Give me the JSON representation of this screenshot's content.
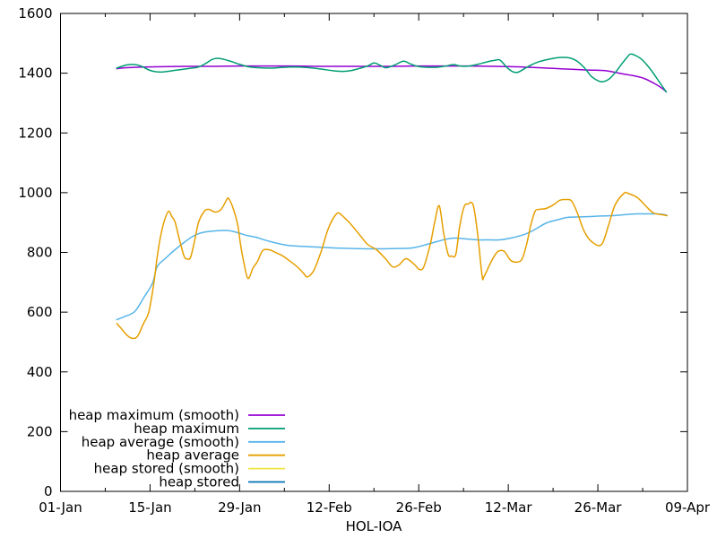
{
  "chart_data": {
    "type": "line",
    "title": "",
    "xlabel": "HOL-IOA",
    "ylabel": "",
    "xlim_days": [
      0,
      98
    ],
    "ylim": [
      0,
      1600
    ],
    "grid": false,
    "legend_position": "inside-bottom-left",
    "axis_color": "#000000",
    "background_color": "#ffffff",
    "y_ticks": [
      0,
      200,
      400,
      600,
      800,
      1000,
      1200,
      1400,
      1600
    ],
    "x_major_ticks": [
      {
        "day": 0,
        "label": "01-Jan"
      },
      {
        "day": 14,
        "label": "15-Jan"
      },
      {
        "day": 28,
        "label": "29-Jan"
      },
      {
        "day": 42,
        "label": "12-Feb"
      },
      {
        "day": 56,
        "label": "26-Feb"
      },
      {
        "day": 70,
        "label": "12-Mar"
      },
      {
        "day": 84,
        "label": "26-Mar"
      },
      {
        "day": 98,
        "label": "09-Apr"
      }
    ],
    "x_minor_tick_days": [
      7,
      21,
      35,
      49,
      63,
      77,
      91
    ],
    "series": [
      {
        "name": "heap maximum (smooth)",
        "color": "#9400d3",
        "points": [
          [
            8.8,
            1415
          ],
          [
            10,
            1418
          ],
          [
            12,
            1420
          ],
          [
            14,
            1421
          ],
          [
            17,
            1422
          ],
          [
            20,
            1423
          ],
          [
            24,
            1423
          ],
          [
            28,
            1424
          ],
          [
            32,
            1424
          ],
          [
            36,
            1424
          ],
          [
            40,
            1423
          ],
          [
            44,
            1423
          ],
          [
            48,
            1423
          ],
          [
            52,
            1423
          ],
          [
            56,
            1424
          ],
          [
            60,
            1424
          ],
          [
            64,
            1424
          ],
          [
            68,
            1423
          ],
          [
            70,
            1422
          ],
          [
            72,
            1421
          ],
          [
            74,
            1419
          ],
          [
            76,
            1417
          ],
          [
            78,
            1415
          ],
          [
            80,
            1413
          ],
          [
            82,
            1411
          ],
          [
            83.5,
            1410
          ],
          [
            85.4,
            1408
          ],
          [
            87.6,
            1399
          ],
          [
            90,
            1390
          ],
          [
            91.4,
            1381
          ],
          [
            92.8,
            1366
          ],
          [
            93.8,
            1353
          ],
          [
            94.7,
            1338
          ]
        ]
      },
      {
        "name": "heap maximum",
        "color": "#009e73",
        "points": [
          [
            8.8,
            1417
          ],
          [
            10.2,
            1427
          ],
          [
            11.6,
            1429
          ],
          [
            12.7,
            1423
          ],
          [
            13.8,
            1411
          ],
          [
            14.9,
            1405
          ],
          [
            16.0,
            1404
          ],
          [
            17.4,
            1408
          ],
          [
            18.8,
            1412
          ],
          [
            20.2,
            1416
          ],
          [
            21.6,
            1421
          ],
          [
            22.8,
            1434
          ],
          [
            23.7,
            1446
          ],
          [
            24.6,
            1450
          ],
          [
            25.6,
            1446
          ],
          [
            26.7,
            1439
          ],
          [
            28.1,
            1429
          ],
          [
            29.5,
            1421
          ],
          [
            31.2,
            1418
          ],
          [
            32.9,
            1417
          ],
          [
            34.5,
            1419
          ],
          [
            36.2,
            1421
          ],
          [
            37.9,
            1420
          ],
          [
            39.6,
            1417
          ],
          [
            41.0,
            1413
          ],
          [
            42.7,
            1408
          ],
          [
            44.1,
            1406
          ],
          [
            45.5,
            1409
          ],
          [
            46.9,
            1417
          ],
          [
            48.0,
            1424
          ],
          [
            49.0,
            1434
          ],
          [
            49.9,
            1427
          ],
          [
            50.9,
            1418
          ],
          [
            52.2,
            1427
          ],
          [
            53.6,
            1440
          ],
          [
            54.7,
            1431
          ],
          [
            55.8,
            1423
          ],
          [
            57.2,
            1420
          ],
          [
            58.9,
            1420
          ],
          [
            60.3,
            1424
          ],
          [
            61.4,
            1429
          ],
          [
            62.5,
            1424
          ],
          [
            63.9,
            1424
          ],
          [
            65.3,
            1430
          ],
          [
            66.7,
            1438
          ],
          [
            67.9,
            1443
          ],
          [
            68.7,
            1444
          ],
          [
            69.8,
            1419
          ],
          [
            70.7,
            1405
          ],
          [
            71.5,
            1403
          ],
          [
            72.6,
            1416
          ],
          [
            73.7,
            1429
          ],
          [
            74.9,
            1439
          ],
          [
            76.0,
            1445
          ],
          [
            77.4,
            1451
          ],
          [
            78.5,
            1453
          ],
          [
            79.6,
            1451
          ],
          [
            80.7,
            1441
          ],
          [
            81.9,
            1418
          ],
          [
            83.0,
            1389
          ],
          [
            84.1,
            1374
          ],
          [
            84.9,
            1372
          ],
          [
            85.9,
            1383
          ],
          [
            86.9,
            1407
          ],
          [
            87.7,
            1430
          ],
          [
            88.6,
            1454
          ],
          [
            89.1,
            1464
          ],
          [
            89.8,
            1460
          ],
          [
            90.7,
            1449
          ],
          [
            91.7,
            1427
          ],
          [
            92.6,
            1402
          ],
          [
            93.6,
            1371
          ],
          [
            94.7,
            1337
          ]
        ]
      },
      {
        "name": "heap average (smooth)",
        "color": "#56b4e9",
        "points": [
          [
            8.8,
            575
          ],
          [
            10.0,
            585
          ],
          [
            11.6,
            602
          ],
          [
            13.0,
            648
          ],
          [
            14.4,
            698
          ],
          [
            15.1,
            752
          ],
          [
            16.5,
            782
          ],
          [
            17.9,
            809
          ],
          [
            19.3,
            833
          ],
          [
            20.7,
            854
          ],
          [
            22.1,
            866
          ],
          [
            24.2,
            872
          ],
          [
            26.3,
            873
          ],
          [
            27.7,
            866
          ],
          [
            29.1,
            857
          ],
          [
            30.5,
            851
          ],
          [
            32.5,
            838
          ],
          [
            35.4,
            824
          ],
          [
            38.0,
            820
          ],
          [
            40.0,
            818
          ],
          [
            42.8,
            815
          ],
          [
            46.0,
            813
          ],
          [
            49.4,
            812
          ],
          [
            52.0,
            813
          ],
          [
            55.0,
            815
          ],
          [
            57.8,
            830
          ],
          [
            60.0,
            843
          ],
          [
            61.6,
            848
          ],
          [
            63.4,
            845
          ],
          [
            65.2,
            842
          ],
          [
            67.0,
            842
          ],
          [
            68.6,
            842
          ],
          [
            70.4,
            848
          ],
          [
            72.2,
            858
          ],
          [
            73.2,
            866
          ],
          [
            74.4,
            880
          ],
          [
            76.0,
            899
          ],
          [
            77.5,
            908
          ],
          [
            79.2,
            917
          ],
          [
            81.0,
            919
          ],
          [
            82.6,
            920
          ],
          [
            84.4,
            922
          ],
          [
            86.2,
            923
          ],
          [
            88.0,
            926
          ],
          [
            90.0,
            929
          ],
          [
            91.7,
            929
          ],
          [
            93.2,
            929
          ],
          [
            94.3,
            927
          ],
          [
            94.8,
            924
          ]
        ]
      },
      {
        "name": "heap average",
        "color": "#e69f00",
        "points": [
          [
            8.8,
            562
          ],
          [
            9.5,
            545
          ],
          [
            10.3,
            525
          ],
          [
            11.1,
            513
          ],
          [
            12.0,
            518
          ],
          [
            13.0,
            563
          ],
          [
            13.8,
            600
          ],
          [
            14.6,
            698
          ],
          [
            15.1,
            783
          ],
          [
            15.7,
            860
          ],
          [
            16.3,
            910
          ],
          [
            16.9,
            938
          ],
          [
            17.4,
            920
          ],
          [
            17.9,
            902
          ],
          [
            18.6,
            842
          ],
          [
            19.3,
            788
          ],
          [
            19.7,
            779
          ],
          [
            20.3,
            782
          ],
          [
            20.9,
            833
          ],
          [
            21.6,
            902
          ],
          [
            22.5,
            938
          ],
          [
            23.2,
            944
          ],
          [
            24.2,
            935
          ],
          [
            25.1,
            944
          ],
          [
            26.0,
            977
          ],
          [
            26.3,
            980
          ],
          [
            27.0,
            947
          ],
          [
            27.7,
            893
          ],
          [
            28.1,
            833
          ],
          [
            28.6,
            773
          ],
          [
            29.3,
            713
          ],
          [
            30.1,
            748
          ],
          [
            30.8,
            770
          ],
          [
            31.6,
            806
          ],
          [
            32.6,
            809
          ],
          [
            33.6,
            800
          ],
          [
            34.6,
            790
          ],
          [
            35.8,
            772
          ],
          [
            37.0,
            752
          ],
          [
            38.0,
            730
          ],
          [
            38.6,
            718
          ],
          [
            39.6,
            740
          ],
          [
            40.7,
            800
          ],
          [
            41.7,
            870
          ],
          [
            42.4,
            905
          ],
          [
            43.1,
            928
          ],
          [
            43.5,
            932
          ],
          [
            44.2,
            920
          ],
          [
            45.2,
            899
          ],
          [
            46.6,
            863
          ],
          [
            48.0,
            827
          ],
          [
            49.4,
            809
          ],
          [
            50.8,
            779
          ],
          [
            51.9,
            752
          ],
          [
            52.9,
            758
          ],
          [
            54.0,
            779
          ],
          [
            55.3,
            760
          ],
          [
            56.1,
            743
          ],
          [
            56.8,
            752
          ],
          [
            57.8,
            827
          ],
          [
            58.5,
            902
          ],
          [
            59.2,
            956
          ],
          [
            59.9,
            863
          ],
          [
            60.6,
            794
          ],
          [
            61.1,
            788
          ],
          [
            61.8,
            794
          ],
          [
            62.4,
            887
          ],
          [
            63.1,
            953
          ],
          [
            63.7,
            962
          ],
          [
            64.5,
            959
          ],
          [
            65.2,
            863
          ],
          [
            65.9,
            722
          ],
          [
            66.2,
            719
          ],
          [
            67.2,
            764
          ],
          [
            68.1,
            797
          ],
          [
            68.7,
            806
          ],
          [
            69.4,
            803
          ],
          [
            70.4,
            773
          ],
          [
            71.5,
            768
          ],
          [
            72.2,
            780
          ],
          [
            72.9,
            830
          ],
          [
            73.5,
            890
          ],
          [
            74.2,
            938
          ],
          [
            74.9,
            944
          ],
          [
            75.9,
            947
          ],
          [
            77.1,
            960
          ],
          [
            78.1,
            975
          ],
          [
            79.1,
            977
          ],
          [
            79.9,
            972
          ],
          [
            80.8,
            932
          ],
          [
            81.9,
            869
          ],
          [
            83.2,
            833
          ],
          [
            84.6,
            827
          ],
          [
            85.7,
            893
          ],
          [
            86.7,
            959
          ],
          [
            88.1,
            998
          ],
          [
            88.8,
            997
          ],
          [
            90.2,
            983
          ],
          [
            91.6,
            953
          ],
          [
            92.7,
            932
          ],
          [
            94.1,
            926
          ],
          [
            94.8,
            923
          ]
        ]
      },
      {
        "name": "heap stored (smooth)",
        "color": "#f0e442",
        "points": []
      },
      {
        "name": "heap stored",
        "color": "#0072b2",
        "points": []
      }
    ]
  }
}
